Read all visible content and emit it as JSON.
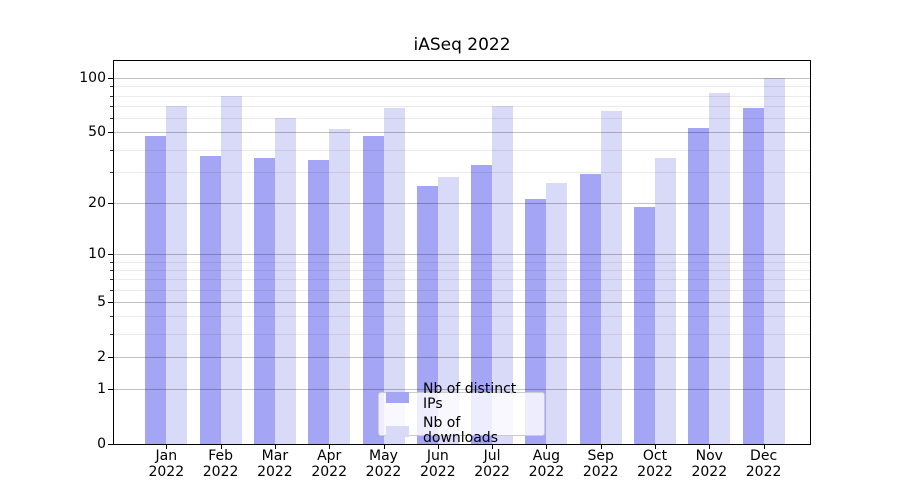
{
  "chart_data": {
    "type": "bar",
    "title": "iASeq 2022",
    "xlabel": "",
    "ylabel": "",
    "y_scale": "log(1+y)",
    "ylim": [
      0,
      127
    ],
    "grid": true,
    "categories": [
      "Jan",
      "Feb",
      "Mar",
      "Apr",
      "May",
      "Jun",
      "Jul",
      "Aug",
      "Sep",
      "Oct",
      "Nov",
      "Dec"
    ],
    "year_label": "2022",
    "y_ticks": [
      0,
      1,
      2,
      5,
      10,
      20,
      50,
      100
    ],
    "y_minor_ticks": [
      3,
      4,
      6,
      7,
      8,
      9,
      30,
      40,
      60,
      70,
      80,
      90
    ],
    "series": [
      {
        "name": "Nb of distinct IPs",
        "color": "#a5a5f5",
        "values": [
          48,
          37,
          36,
          35,
          48,
          25,
          33,
          21,
          29,
          19,
          53,
          68
        ]
      },
      {
        "name": "Nb of downloads",
        "color": "#d9d9f8",
        "values": [
          70,
          80,
          60,
          52,
          68,
          28,
          70,
          26,
          66,
          36,
          83,
          100
        ]
      }
    ],
    "legend": {
      "position": "lower center",
      "labels": [
        "Nb of distinct IPs",
        "Nb of downloads"
      ]
    }
  }
}
